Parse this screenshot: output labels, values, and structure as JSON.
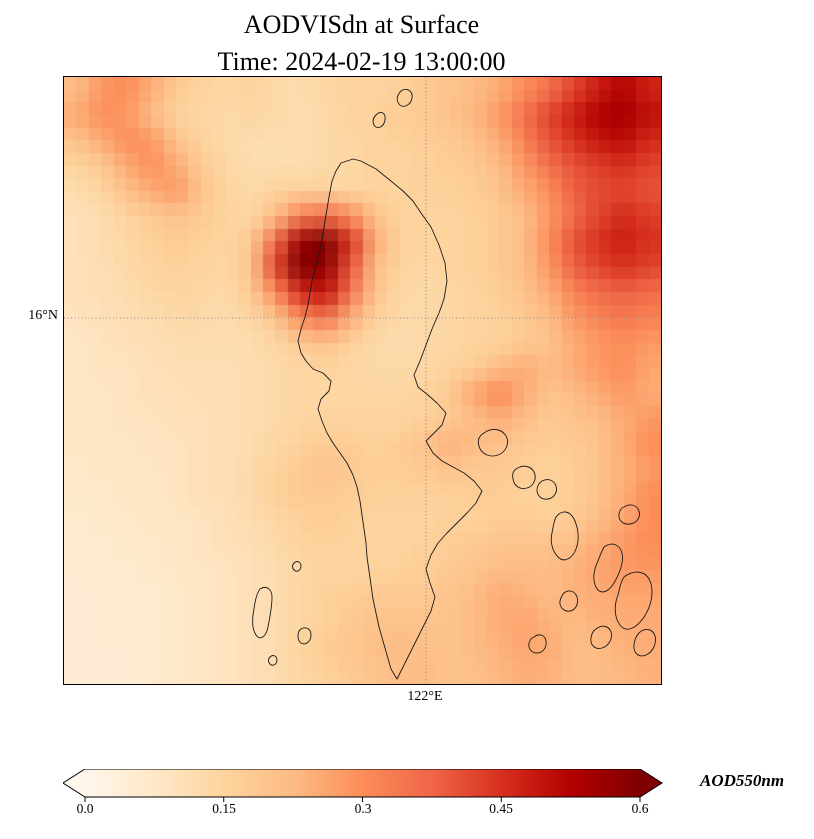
{
  "chart_data": {
    "type": "heatmap",
    "title": "AODVISdn at Surface",
    "subtitle": "Time: 2024-02-19 13:00:00",
    "variable": "AOD550nm",
    "xtick": {
      "label": "122°E",
      "frac": 0.6064
    },
    "ytick": {
      "label": "16°N",
      "frac": 0.397
    },
    "colorbar": {
      "label": "AOD550nm",
      "ticks": [
        "0.0",
        "0.15",
        "0.3",
        "0.45",
        "0.6"
      ],
      "tick_values": [
        0,
        0.15,
        0.3,
        0.45,
        0.6
      ],
      "vmin": 0,
      "vmax": 0.6,
      "extend": "both",
      "colormap": "OrRd"
    },
    "colormap_stops": [
      [
        0.0,
        "#fff7ec"
      ],
      [
        0.125,
        "#fee8c8"
      ],
      [
        0.25,
        "#fdd49e"
      ],
      [
        0.375,
        "#fdbb84"
      ],
      [
        0.5,
        "#fc8d59"
      ],
      [
        0.625,
        "#ef6548"
      ],
      [
        0.75,
        "#d7301f"
      ],
      [
        0.875,
        "#b30000"
      ],
      [
        1.0,
        "#7f0000"
      ]
    ],
    "grid_values": [
      [
        0.22,
        0.28,
        0.3,
        0.25,
        0.18,
        0.15,
        0.14,
        0.15,
        0.13,
        0.12,
        0.14,
        0.15,
        0.15,
        0.16,
        0.18,
        0.2,
        0.22,
        0.25,
        0.3,
        0.35,
        0.42,
        0.48,
        0.52,
        0.47
      ],
      [
        0.25,
        0.3,
        0.28,
        0.22,
        0.16,
        0.14,
        0.13,
        0.14,
        0.13,
        0.12,
        0.13,
        0.15,
        0.16,
        0.17,
        0.18,
        0.2,
        0.23,
        0.28,
        0.35,
        0.42,
        0.48,
        0.53,
        0.55,
        0.5
      ],
      [
        0.2,
        0.25,
        0.3,
        0.28,
        0.2,
        0.15,
        0.13,
        0.12,
        0.12,
        0.12,
        0.13,
        0.14,
        0.15,
        0.16,
        0.17,
        0.18,
        0.21,
        0.25,
        0.32,
        0.4,
        0.45,
        0.49,
        0.51,
        0.46
      ],
      [
        0.15,
        0.18,
        0.25,
        0.3,
        0.25,
        0.18,
        0.14,
        0.12,
        0.12,
        0.12,
        0.13,
        0.14,
        0.15,
        0.15,
        0.16,
        0.17,
        0.18,
        0.22,
        0.28,
        0.35,
        0.4,
        0.43,
        0.45,
        0.42
      ],
      [
        0.12,
        0.15,
        0.2,
        0.25,
        0.28,
        0.2,
        0.15,
        0.13,
        0.15,
        0.16,
        0.15,
        0.14,
        0.15,
        0.15,
        0.16,
        0.16,
        0.17,
        0.2,
        0.25,
        0.3,
        0.38,
        0.41,
        0.42,
        0.4
      ],
      [
        0.1,
        0.12,
        0.15,
        0.18,
        0.2,
        0.18,
        0.15,
        0.14,
        0.22,
        0.32,
        0.36,
        0.3,
        0.2,
        0.15,
        0.15,
        0.15,
        0.16,
        0.18,
        0.22,
        0.28,
        0.36,
        0.42,
        0.46,
        0.43
      ],
      [
        0.1,
        0.12,
        0.14,
        0.16,
        0.18,
        0.16,
        0.15,
        0.18,
        0.36,
        0.56,
        0.6,
        0.45,
        0.25,
        0.16,
        0.15,
        0.15,
        0.16,
        0.18,
        0.22,
        0.3,
        0.4,
        0.45,
        0.48,
        0.45
      ],
      [
        0.1,
        0.11,
        0.13,
        0.15,
        0.16,
        0.15,
        0.14,
        0.2,
        0.42,
        0.6,
        0.58,
        0.4,
        0.22,
        0.15,
        0.14,
        0.15,
        0.16,
        0.18,
        0.22,
        0.28,
        0.38,
        0.42,
        0.45,
        0.42
      ],
      [
        0.1,
        0.11,
        0.12,
        0.14,
        0.15,
        0.14,
        0.13,
        0.18,
        0.3,
        0.46,
        0.5,
        0.35,
        0.2,
        0.14,
        0.13,
        0.14,
        0.15,
        0.17,
        0.2,
        0.25,
        0.32,
        0.36,
        0.38,
        0.36
      ],
      [
        0.09,
        0.1,
        0.11,
        0.12,
        0.13,
        0.13,
        0.12,
        0.14,
        0.2,
        0.3,
        0.35,
        0.25,
        0.16,
        0.13,
        0.13,
        0.14,
        0.15,
        0.16,
        0.18,
        0.22,
        0.28,
        0.32,
        0.34,
        0.32
      ],
      [
        0.08,
        0.09,
        0.1,
        0.11,
        0.12,
        0.12,
        0.12,
        0.12,
        0.14,
        0.18,
        0.21,
        0.16,
        0.13,
        0.12,
        0.13,
        0.14,
        0.15,
        0.16,
        0.18,
        0.2,
        0.25,
        0.28,
        0.3,
        0.28
      ],
      [
        0.08,
        0.09,
        0.09,
        0.1,
        0.11,
        0.11,
        0.11,
        0.12,
        0.13,
        0.14,
        0.15,
        0.14,
        0.13,
        0.13,
        0.14,
        0.15,
        0.17,
        0.22,
        0.25,
        0.22,
        0.25,
        0.28,
        0.3,
        0.26
      ],
      [
        0.08,
        0.08,
        0.09,
        0.1,
        0.1,
        0.11,
        0.11,
        0.12,
        0.13,
        0.14,
        0.14,
        0.14,
        0.14,
        0.14,
        0.15,
        0.18,
        0.26,
        0.31,
        0.25,
        0.2,
        0.22,
        0.25,
        0.28,
        0.25
      ],
      [
        0.08,
        0.08,
        0.09,
        0.09,
        0.1,
        0.1,
        0.11,
        0.12,
        0.13,
        0.14,
        0.15,
        0.15,
        0.15,
        0.15,
        0.16,
        0.18,
        0.22,
        0.25,
        0.22,
        0.18,
        0.2,
        0.22,
        0.25,
        0.28
      ],
      [
        0.08,
        0.08,
        0.08,
        0.09,
        0.09,
        0.1,
        0.11,
        0.12,
        0.14,
        0.16,
        0.17,
        0.17,
        0.16,
        0.17,
        0.2,
        0.24,
        0.22,
        0.2,
        0.18,
        0.17,
        0.18,
        0.2,
        0.25,
        0.3
      ],
      [
        0.07,
        0.08,
        0.08,
        0.08,
        0.09,
        0.1,
        0.11,
        0.13,
        0.15,
        0.18,
        0.2,
        0.18,
        0.17,
        0.17,
        0.18,
        0.2,
        0.18,
        0.18,
        0.17,
        0.16,
        0.17,
        0.2,
        0.24,
        0.28
      ],
      [
        0.07,
        0.07,
        0.08,
        0.08,
        0.09,
        0.1,
        0.11,
        0.13,
        0.16,
        0.18,
        0.18,
        0.17,
        0.16,
        0.16,
        0.16,
        0.16,
        0.17,
        0.17,
        0.16,
        0.16,
        0.17,
        0.2,
        0.25,
        0.3
      ],
      [
        0.06,
        0.07,
        0.07,
        0.08,
        0.08,
        0.09,
        0.1,
        0.12,
        0.14,
        0.16,
        0.17,
        0.16,
        0.15,
        0.15,
        0.15,
        0.16,
        0.16,
        0.17,
        0.17,
        0.16,
        0.18,
        0.22,
        0.26,
        0.3
      ],
      [
        0.06,
        0.06,
        0.07,
        0.07,
        0.08,
        0.09,
        0.1,
        0.11,
        0.13,
        0.15,
        0.16,
        0.15,
        0.15,
        0.15,
        0.16,
        0.17,
        0.18,
        0.2,
        0.2,
        0.2,
        0.22,
        0.25,
        0.28,
        0.3
      ],
      [
        0.05,
        0.06,
        0.06,
        0.07,
        0.08,
        0.08,
        0.09,
        0.1,
        0.12,
        0.14,
        0.15,
        0.15,
        0.15,
        0.16,
        0.17,
        0.18,
        0.2,
        0.22,
        0.22,
        0.22,
        0.24,
        0.26,
        0.28,
        0.28
      ],
      [
        0.05,
        0.05,
        0.06,
        0.06,
        0.07,
        0.08,
        0.09,
        0.1,
        0.12,
        0.14,
        0.16,
        0.17,
        0.18,
        0.18,
        0.18,
        0.2,
        0.22,
        0.25,
        0.24,
        0.22,
        0.24,
        0.25,
        0.26,
        0.26
      ],
      [
        0.05,
        0.05,
        0.06,
        0.06,
        0.07,
        0.08,
        0.09,
        0.1,
        0.12,
        0.14,
        0.16,
        0.18,
        0.2,
        0.2,
        0.2,
        0.2,
        0.22,
        0.25,
        0.26,
        0.24,
        0.22,
        0.24,
        0.25,
        0.25
      ],
      [
        0.05,
        0.05,
        0.05,
        0.06,
        0.07,
        0.08,
        0.09,
        0.1,
        0.12,
        0.15,
        0.17,
        0.19,
        0.21,
        0.22,
        0.21,
        0.2,
        0.22,
        0.24,
        0.26,
        0.25,
        0.22,
        0.22,
        0.24,
        0.25
      ],
      [
        0.05,
        0.05,
        0.05,
        0.06,
        0.07,
        0.08,
        0.09,
        0.1,
        0.12,
        0.14,
        0.16,
        0.18,
        0.2,
        0.22,
        0.22,
        0.2,
        0.21,
        0.23,
        0.25,
        0.24,
        0.22,
        0.22,
        0.23,
        0.24
      ]
    ],
    "coastlines": [
      "M289,82 L297,84 L312,92 L327,104 L339,114 L349,124 L357,136 L367,150 L375,168 L381,186 L383,204 L380,222 L375,236 L368,252 L362,268 L356,284 L350,298 L354,310 L364,318 L373,326 L382,336 L378,348 L370,356 L362,364 L369,376 L378,384 L389,390 L400,396 L410,404 L418,414 L412,426 L403,436 L393,446 L383,456 L374,466 L367,478 L362,492 L366,506 L371,520 L367,534 L360,548 L353,562 L346,576 L339,590 L333,602 L327,592 L323,578 L319,564 L315,550 L312,536 L309,522 L307,508 L305,494 L303,480 L302,466 L300,452 L298,438 L296,424 L293,410 L289,398 L283,386 L276,376 L269,366 L263,356 L258,344 L254,332 L257,322 L265,314 L267,304 L259,296 L249,292 L242,284 L237,276 L234,264 L237,252 L241,240 L244,228 L246,216 L248,204 L251,192 L254,180 L257,168 L259,156 L261,144 L263,132 L265,120 L268,104 L272,94 L277,86 Z",
      "M312,38 c5,-5 10,-2 9,5 c-1,7 -8,10 -11,5 c-2,-4 -1,-7 2,-10 Z",
      "M337,14 c6,-4 12,0 11,7 c-1,7 -9,11 -13,6 c-3,-4 -2,-9 2,-13 Z",
      "M420,356 c8,-6 18,-4 22,3 c4,7 0,16 -8,19 c-8,3 -17,-1 -19,-9 c-2,-6 0,-10 5,-13 Z",
      "M452,392 c7,-5 15,-3 18,3 c3,6 0,14 -7,16 c-7,2 -13,-2 -14,-9 c-1,-5 0,-8 3,-10 Z",
      "M478,404 c6,-3 12,-1 14,5 c2,6 -2,12 -8,13 c-6,1 -11,-3 -11,-9 c0,-4 2,-7 5,-9 Z",
      "M492,440 c6,-8 14,-6 18,2 c4,8 6,20 2,30 c-4,10 -12,14 -18,8 c-6,-6 -8,-16 -6,-24 c1,-6 2,-12 4,-16 Z",
      "M540,470 c8,-6 16,-2 18,6 c2,8 -2,20 -8,30 c-6,10 -14,12 -18,4 c-4,-8 -2,-18 2,-26 c2,-6 4,-10 6,-14 Z",
      "M560,430 c6,-4 13,-2 15,4 c2,6 -2,12 -9,13 c-7,1 -12,-4 -11,-10 c1,-4 2,-6 5,-7 Z",
      "M500,516 c5,-4 11,-2 13,4 c2,6 -1,13 -7,14 c-6,1 -11,-4 -10,-10 c1,-4 2,-6 4,-8 Z",
      "M532,552 c6,-5 13,-3 15,3 c2,6 -2,14 -9,16 c-7,2 -12,-3 -11,-10 c1,-5 2,-7 5,-9 Z",
      "M575,556 c6,-6 14,-4 16,3 c2,7 -2,16 -9,19 c-7,3 -13,-2 -12,-10 c1,-6 2,-9 5,-12 Z",
      "M470,560 c5,-4 11,-2 12,4 c1,6 -3,12 -9,12 c-6,0 -9,-5 -8,-10 c1,-3 2,-5 5,-6 Z",
      "M560,500 c10,-8 22,-6 26,4 c4,10 2,24 -6,36 c-8,12 -18,16 -24,8 c-6,-8 -6,-20 -2,-30 c2,-8 3,-14 6,-18 Z",
      "M196,512 c6,-4 12,0 12,8 c0,8 -2,20 -4,30 c-2,10 -8,14 -12,8 c-4,-6 -4,-16 -2,-26 c1,-8 3,-16 6,-20 Z",
      "M230,486 c3,-3 7,-1 7,3 c0,4 -4,7 -7,4 c-2,-2 -2,-5 0,-7 Z",
      "M237,552 c5,-3 10,0 10,6 c0,6 -5,11 -10,8 c-4,-3 -4,-11 0,-14 Z",
      "M206,580 c3,-3 7,-1 7,3 c0,4 -4,7 -7,4 c-2,-2 -2,-5 0,-7 Z"
    ]
  }
}
